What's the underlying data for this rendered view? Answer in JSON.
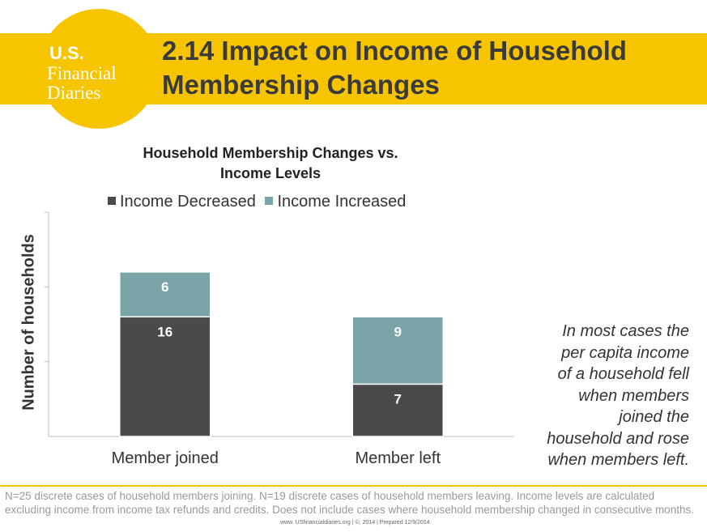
{
  "header": {
    "logo_lines": [
      "U.S.",
      "Financial",
      "Diaries"
    ],
    "title_lines": [
      "2.14 Impact on Income of Household",
      "Membership Changes"
    ]
  },
  "colors": {
    "brand_yellow": "#f7c500",
    "income_decreased": "#4a4a4c",
    "income_increased": "#7aa4a8"
  },
  "chart_data": {
    "type": "bar",
    "stacked": true,
    "title": "Household Membership Changes vs. Income Levels",
    "title_lines": [
      "Household Membership Changes vs.",
      "Income Levels"
    ],
    "ylabel": "Number of households",
    "xlabel": "",
    "ylim": [
      0,
      30
    ],
    "categories": [
      "Member joined",
      "Member left"
    ],
    "series": [
      {
        "name": "Income Decreased",
        "values": [
          16,
          7
        ]
      },
      {
        "name": "Income Increased",
        "values": [
          6,
          9
        ]
      }
    ],
    "legend_position": "top",
    "grid": false
  },
  "note": {
    "lines": [
      "In most cases the",
      "per capita income",
      "of a household fell",
      "when members",
      "joined the",
      "household and rose",
      "when members left."
    ]
  },
  "footer": {
    "text": "N=25 discrete cases of household members joining. N=19 discrete cases of household members leaving. Income levels are calculated excluding income from income tax refunds and credits. Does not include cases where household membership changed in consecutive months.",
    "credit": "www. USfinancialdiaries.org | ©, 2014 | Prepared 12/9/2014"
  }
}
